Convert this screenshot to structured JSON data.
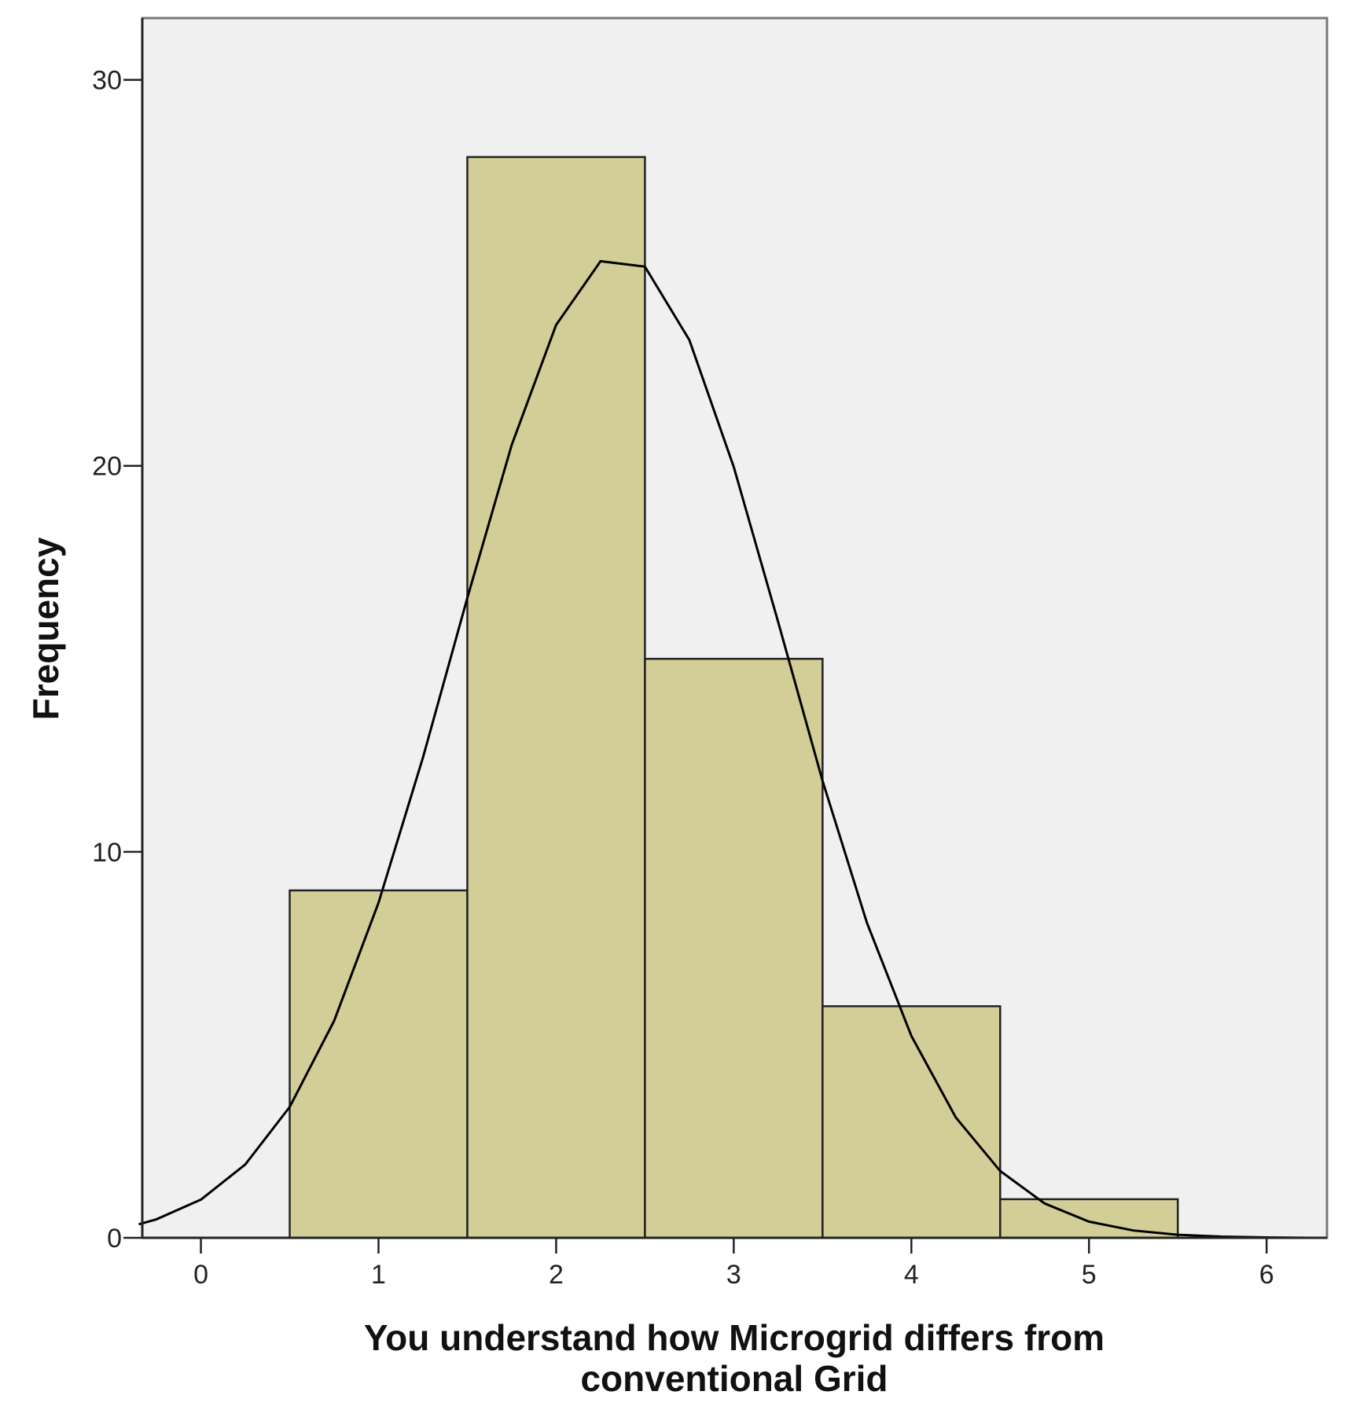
{
  "chart_data": {
    "type": "histogram",
    "x_label": "You understand how Microgrid differs from conventional Grid",
    "y_label": "Frequency",
    "bins": [
      0.5,
      1.5,
      2.5,
      3.5,
      4.5,
      5.5
    ],
    "values": [
      9,
      28,
      15,
      6,
      1
    ],
    "color": "#d3ce97",
    "curve": {
      "type": "line",
      "color": "#000000",
      "x": [
        -0.35,
        -0.25,
        0,
        0.25,
        0.5,
        0.75,
        1,
        1.25,
        1.5,
        1.75,
        2,
        2.25,
        2.5,
        2.75,
        3,
        3.25,
        3.5,
        3.75,
        4,
        4.25,
        4.5,
        4.75,
        5,
        5.25,
        5.5,
        5.75,
        6,
        6.25
      ],
      "values": [
        0.35,
        0.48,
        0.99,
        1.9,
        3.39,
        5.62,
        8.68,
        12.44,
        16.58,
        20.54,
        23.65,
        25.3,
        25.16,
        23.26,
        19.97,
        15.95,
        11.84,
        8.16,
        5.23,
        3.12,
        1.73,
        0.89,
        0.42,
        0.19,
        0.08,
        0.03,
        0.01,
        0
      ]
    },
    "xlim": [
      -0.33,
      6.34
    ],
    "ylim": [
      0,
      31.6
    ],
    "xticks": [
      0,
      1,
      2,
      3,
      4,
      5,
      6
    ],
    "yticks": [
      0,
      10,
      20,
      30
    ],
    "background": "#f0f0f0"
  }
}
